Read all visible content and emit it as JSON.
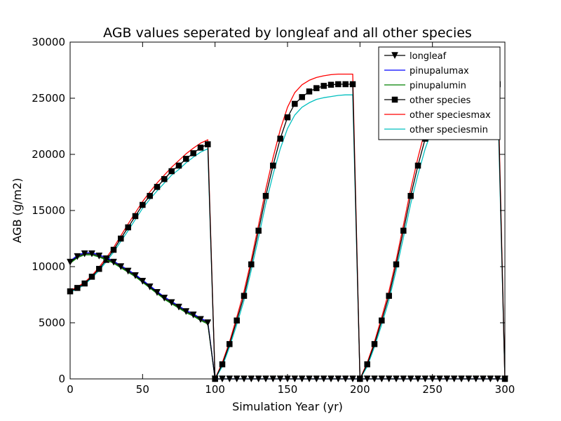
{
  "chart_data": {
    "type": "line",
    "title": "AGB values seperated by longleaf and all other species",
    "xlabel": "Simulation Year (yr)",
    "ylabel": "AGB (g/m2)",
    "xlim": [
      0,
      300
    ],
    "ylim": [
      0,
      30000
    ],
    "xticks": [
      0,
      50,
      100,
      150,
      200,
      250,
      300
    ],
    "yticks": [
      0,
      5000,
      10000,
      15000,
      20000,
      25000,
      30000
    ],
    "xtick_labels": [
      "0",
      "50",
      "100",
      "150",
      "200",
      "250",
      "300"
    ],
    "ytick_labels": [
      "0",
      "5000",
      "10000",
      "15000",
      "20000",
      "25000",
      "30000"
    ],
    "grid": false,
    "legend_position": "top-right",
    "series": [
      {
        "name": "longleaf",
        "color": "#000000",
        "marker": "triangle-down",
        "x": [
          0,
          5,
          10,
          15,
          20,
          25,
          30,
          35,
          40,
          45,
          50,
          55,
          60,
          65,
          70,
          75,
          80,
          85,
          90,
          95,
          100,
          105,
          110,
          115,
          120,
          125,
          130,
          135,
          140,
          145,
          150,
          155,
          160,
          165,
          170,
          175,
          180,
          185,
          190,
          195,
          200,
          205,
          210,
          215,
          220,
          225,
          230,
          235,
          240,
          245,
          250,
          255,
          260,
          265,
          270,
          275,
          280,
          285,
          290,
          295,
          300
        ],
        "values": [
          10400,
          10900,
          11150,
          11150,
          10950,
          10700,
          10400,
          10000,
          9600,
          9200,
          8700,
          8200,
          7700,
          7200,
          6800,
          6400,
          6000,
          5700,
          5300,
          5000,
          0,
          0,
          0,
          0,
          0,
          0,
          0,
          0,
          0,
          0,
          0,
          0,
          0,
          0,
          0,
          0,
          0,
          0,
          0,
          0,
          0,
          0,
          0,
          0,
          0,
          0,
          0,
          0,
          0,
          0,
          0,
          0,
          0,
          0,
          0,
          0,
          0,
          0,
          0,
          0,
          0
        ]
      },
      {
        "name": "pinupalumax",
        "color": "#0000ff",
        "marker": "none",
        "x": [
          0,
          5,
          10,
          15,
          20,
          25,
          30,
          35,
          40,
          45,
          50,
          55,
          60,
          65,
          70,
          75,
          80,
          85,
          90,
          95,
          100,
          300
        ],
        "values": [
          10500,
          11000,
          11250,
          11250,
          11050,
          10800,
          10500,
          10100,
          9700,
          9300,
          8800,
          8300,
          7800,
          7300,
          6900,
          6500,
          6100,
          5800,
          5400,
          5100,
          0,
          0
        ]
      },
      {
        "name": "pinupalumin",
        "color": "#008000",
        "marker": "none",
        "x": [
          0,
          5,
          10,
          15,
          20,
          25,
          30,
          35,
          40,
          45,
          50,
          55,
          60,
          65,
          70,
          75,
          80,
          85,
          90,
          95,
          100,
          300
        ],
        "values": [
          10300,
          10800,
          11050,
          11050,
          10850,
          10600,
          10300,
          9900,
          9500,
          9100,
          8600,
          8100,
          7600,
          7100,
          6700,
          6300,
          5900,
          5600,
          5200,
          4900,
          0,
          0
        ]
      },
      {
        "name": "other species",
        "color": "#000000",
        "marker": "square",
        "x": [
          0,
          5,
          10,
          15,
          20,
          25,
          30,
          35,
          40,
          45,
          50,
          55,
          60,
          65,
          70,
          75,
          80,
          85,
          90,
          95,
          100,
          105,
          110,
          115,
          120,
          125,
          130,
          135,
          140,
          145,
          150,
          155,
          160,
          165,
          170,
          175,
          180,
          185,
          190,
          195,
          200,
          205,
          210,
          215,
          220,
          225,
          230,
          235,
          240,
          245,
          250,
          255,
          260,
          265,
          270,
          275,
          280,
          285,
          290,
          295,
          300
        ],
        "values": [
          7800,
          8100,
          8500,
          9100,
          9800,
          10600,
          11500,
          12500,
          13500,
          14500,
          15500,
          16300,
          17100,
          17800,
          18500,
          19000,
          19600,
          20100,
          20600,
          20900,
          0,
          1300,
          3100,
          5200,
          7400,
          10200,
          13200,
          16300,
          19000,
          21400,
          23300,
          24500,
          25100,
          25600,
          25900,
          26100,
          26200,
          26250,
          26250,
          26250,
          0,
          1300,
          3100,
          5200,
          7400,
          10200,
          13200,
          16300,
          19000,
          21400,
          23300,
          24500,
          25100,
          25600,
          25900,
          26100,
          26200,
          26250,
          26250,
          26250,
          0
        ]
      },
      {
        "name": "other speciesmax",
        "color": "#ff0000",
        "marker": "none",
        "x": [
          0,
          5,
          10,
          15,
          20,
          25,
          30,
          35,
          40,
          45,
          50,
          55,
          60,
          65,
          70,
          75,
          80,
          85,
          90,
          95,
          100,
          105,
          110,
          115,
          120,
          125,
          130,
          135,
          140,
          145,
          150,
          155,
          160,
          165,
          170,
          175,
          180,
          185,
          190,
          195,
          200,
          205,
          210,
          215,
          220,
          225,
          230,
          235,
          240,
          245,
          250,
          255,
          260,
          265,
          270,
          275,
          280,
          285,
          290,
          295,
          300
        ],
        "values": [
          7850,
          8200,
          8600,
          9200,
          9950,
          10800,
          11700,
          12750,
          13800,
          14800,
          15800,
          16650,
          17450,
          18150,
          18850,
          19450,
          20050,
          20550,
          21000,
          21300,
          0,
          1450,
          3300,
          5500,
          7800,
          10600,
          13700,
          16900,
          19700,
          22200,
          24200,
          25500,
          26200,
          26600,
          26850,
          27000,
          27100,
          27150,
          27150,
          27150,
          0,
          1450,
          3300,
          5500,
          7800,
          10600,
          13700,
          16900,
          19700,
          22200,
          24200,
          25500,
          26200,
          26600,
          26850,
          27000,
          27100,
          27150,
          27150,
          27150,
          0
        ]
      },
      {
        "name": "other speciesmin",
        "color": "#00bfbf",
        "marker": "none",
        "x": [
          0,
          5,
          10,
          15,
          20,
          25,
          30,
          35,
          40,
          45,
          50,
          55,
          60,
          65,
          70,
          75,
          80,
          85,
          90,
          95,
          100,
          105,
          110,
          115,
          120,
          125,
          130,
          135,
          140,
          145,
          150,
          155,
          160,
          165,
          170,
          175,
          180,
          185,
          190,
          195,
          200,
          205,
          210,
          215,
          220,
          225,
          230,
          235,
          240,
          245,
          250,
          255,
          260,
          265,
          270,
          275,
          280,
          285,
          290,
          295,
          300
        ],
        "values": [
          7750,
          8000,
          8400,
          9000,
          9650,
          10450,
          11300,
          12250,
          13200,
          14200,
          15200,
          16000,
          16750,
          17450,
          18150,
          18650,
          19250,
          19750,
          20200,
          20500,
          0,
          1100,
          2850,
          4850,
          7000,
          9700,
          12600,
          15600,
          18200,
          20500,
          22300,
          23500,
          24200,
          24600,
          24900,
          25050,
          25150,
          25250,
          25300,
          25300,
          0,
          1100,
          2850,
          4850,
          7000,
          9700,
          12600,
          15600,
          18200,
          20500,
          22300,
          23500,
          24200,
          24600,
          24900,
          25050,
          25150,
          25250,
          25300,
          25300,
          0
        ]
      }
    ]
  }
}
